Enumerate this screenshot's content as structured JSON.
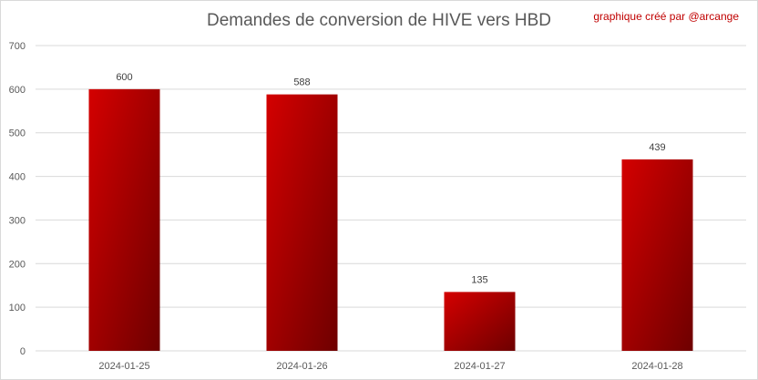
{
  "chart_data": {
    "type": "bar",
    "title": "Demandes de conversion de HIVE vers HBD",
    "credit": "graphique créé par @arcange",
    "categories": [
      "2024-01-25",
      "2024-01-26",
      "2024-01-27",
      "2024-01-28"
    ],
    "values": [
      600,
      588,
      135,
      439
    ],
    "data_labels": [
      "600",
      "588",
      "135",
      "439"
    ],
    "y_ticks": [
      "0",
      "100",
      "200",
      "300",
      "400",
      "500",
      "600",
      "700"
    ],
    "ylim": [
      0,
      700
    ],
    "grid": true,
    "legend": "none",
    "colors": {
      "bar_light": "#d40000",
      "bar_dark": "#6e0000",
      "grid": "#d9d9d9"
    }
  }
}
